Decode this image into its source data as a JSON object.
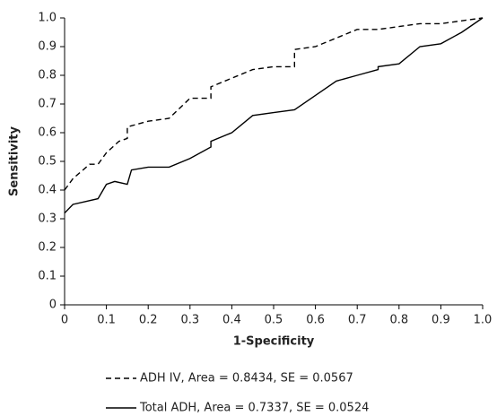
{
  "chart_data": {
    "type": "line",
    "xlabel": "1-Specificity",
    "ylabel": "Sensitivity",
    "xlim": [
      0,
      1
    ],
    "ylim": [
      0,
      1
    ],
    "xticks": [
      0,
      0.1,
      0.2,
      0.3,
      0.4,
      0.5,
      0.6,
      0.7,
      0.8,
      0.9,
      {
        "value": 1,
        "label": "1.0"
      }
    ],
    "yticks": [
      0,
      0.1,
      0.2,
      0.3,
      0.4,
      0.5,
      0.6,
      0.7,
      0.8,
      0.9,
      {
        "value": 1,
        "label": "1.0"
      }
    ],
    "series": [
      {
        "name": "ADH IV, Area = 0.8434, SE = 0.0567",
        "color": "#000000",
        "dash": "dashed",
        "x": [
          0,
          0.02,
          0.06,
          0.08,
          0.1,
          0.13,
          0.15,
          0.15,
          0.2,
          0.25,
          0.3,
          0.35,
          0.35,
          0.4,
          0.45,
          0.5,
          0.55,
          0.55,
          0.6,
          0.65,
          0.7,
          0.75,
          0.8,
          0.85,
          0.9,
          1.0
        ],
        "values": [
          0.4,
          0.44,
          0.49,
          0.49,
          0.53,
          0.57,
          0.58,
          0.62,
          0.64,
          0.65,
          0.72,
          0.72,
          0.76,
          0.79,
          0.82,
          0.83,
          0.83,
          0.89,
          0.9,
          0.93,
          0.96,
          0.96,
          0.97,
          0.98,
          0.98,
          1.0
        ]
      },
      {
        "name": "Total ADH, Area = 0.7337, SE = 0.0524",
        "color": "#000000",
        "dash": "solid",
        "x": [
          0,
          0.02,
          0.05,
          0.08,
          0.1,
          0.12,
          0.15,
          0.16,
          0.2,
          0.25,
          0.3,
          0.35,
          0.35,
          0.4,
          0.45,
          0.5,
          0.55,
          0.6,
          0.65,
          0.7,
          0.75,
          0.75,
          0.8,
          0.85,
          0.9,
          0.95,
          1.0
        ],
        "values": [
          0.32,
          0.35,
          0.36,
          0.37,
          0.42,
          0.43,
          0.42,
          0.47,
          0.48,
          0.48,
          0.51,
          0.55,
          0.57,
          0.6,
          0.66,
          0.67,
          0.68,
          0.73,
          0.78,
          0.8,
          0.82,
          0.83,
          0.84,
          0.9,
          0.91,
          0.95,
          1.0
        ]
      }
    ]
  }
}
